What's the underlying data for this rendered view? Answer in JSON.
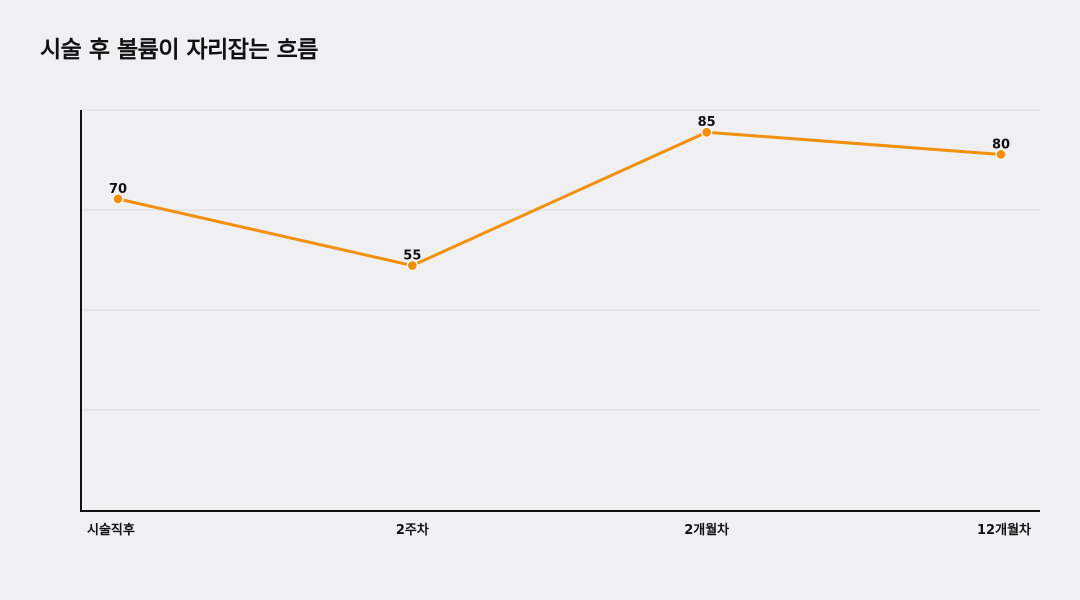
{
  "chart_data": {
    "type": "line",
    "title": "시술 후 볼륨이 자리잡는 흐름",
    "categories": [
      "시술직후",
      "2주차",
      "2개월차",
      "12개월차"
    ],
    "series": [
      {
        "values": [
          70,
          55,
          85,
          80
        ]
      }
    ],
    "ylim": [
      0,
      90
    ],
    "grid": true,
    "legend": "none",
    "colors": {
      "line": "#f0900c",
      "point": "#f0900c",
      "point_stroke": "#ffffff",
      "grid": "#dddddd",
      "axis": "#111111",
      "background": "#f0f0f2"
    }
  }
}
